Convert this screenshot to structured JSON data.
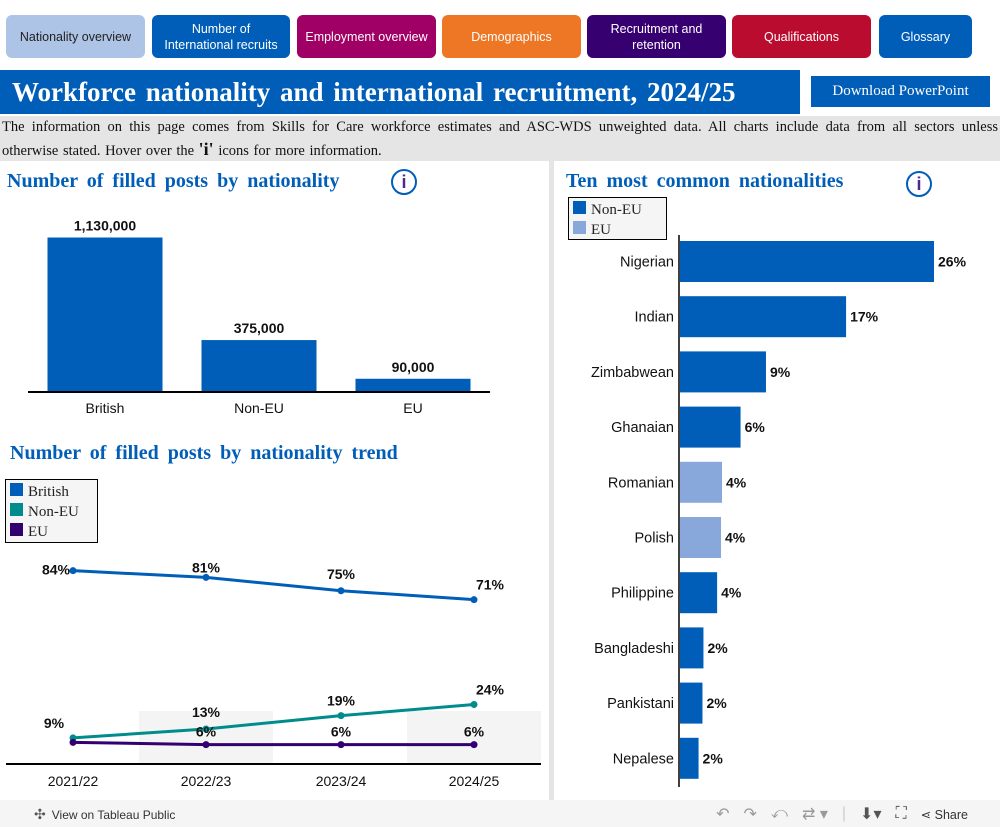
{
  "nav": {
    "tabs": [
      {
        "label": "Nationality overview",
        "color": "#AEC4E6",
        "text_color": "#222222"
      },
      {
        "label": "Number of\nInternational recruits",
        "color": "#005EB8",
        "text_color": "#FFFFFF"
      },
      {
        "label": "Employment overview",
        "color": "#A00065",
        "text_color": "#FFFFFF"
      },
      {
        "label": "Demographics",
        "color": "#ED7725",
        "text_color": "#FFFFFF"
      },
      {
        "label": "Recruitment and\nretention",
        "color": "#370071",
        "text_color": "#FFFFFF"
      },
      {
        "label": "Qualifications",
        "color": "#BA0C2F",
        "text_color": "#FFFFFF"
      },
      {
        "label": "Glossary",
        "color": "#005EB8",
        "text_color": "#FFFFFF"
      }
    ]
  },
  "header": {
    "title": "Workforce nationality and international recruitment, 2024/25",
    "download_label": "Download PowerPoint",
    "intro_part1": "The information on this page comes from Skills for Care workforce estimates and ASC-WDS unweighted data. All charts include data from all sectors unless otherwise stated. Hover over the ",
    "intro_icon": "'i'",
    "intro_part2": " icons for more information."
  },
  "icons": {
    "info": "i"
  },
  "colors": {
    "primary": "#005EB8",
    "non_eu": "#008C8C",
    "eu": "#330072",
    "eu_light": "#88A8DC",
    "band": "#F4F4F4"
  },
  "chart_data": [
    {
      "type": "bar",
      "title": "Number of filled posts by nationality",
      "categories": [
        "British",
        "Non-EU",
        "EU"
      ],
      "values": [
        1130000,
        375000,
        90000
      ],
      "labels": [
        "1,130,000",
        "375,000",
        "90,000"
      ],
      "xlabel": "",
      "ylabel": "",
      "ylim": [
        0,
        1200000
      ],
      "grid": false
    },
    {
      "type": "line",
      "title": "Number of filled posts by nationality trend",
      "x": [
        "2021/22",
        "2022/23",
        "2023/24",
        "2024/25"
      ],
      "series": [
        {
          "name": "British",
          "values": [
            84,
            81,
            75,
            71
          ],
          "labels": [
            "84%",
            "81%",
            "75%",
            "71%"
          ]
        },
        {
          "name": "Non-EU",
          "values": [
            9,
            13,
            19,
            24
          ],
          "labels": [
            "9%",
            "13%",
            "19%",
            "24%"
          ]
        },
        {
          "name": "EU",
          "values": [
            7,
            6,
            6,
            6
          ],
          "labels": [
            "",
            "6%",
            "6%",
            "6%"
          ]
        }
      ],
      "ylim": [
        0,
        100
      ],
      "legend": "top-left",
      "grid": false
    },
    {
      "type": "bar",
      "orientation": "horizontal",
      "title": "Ten most common nationalities",
      "categories": [
        "Nigerian",
        "Indian",
        "Zimbabwean",
        "Ghanaian",
        "Romanian",
        "Polish",
        "Philippine",
        "Bangladeshi",
        "Pankistani",
        "Nepalese"
      ],
      "values": [
        26,
        17,
        9,
        6,
        4,
        4,
        4,
        2,
        2,
        2
      ],
      "bar_values": [
        26,
        17,
        8.8,
        6.2,
        4.3,
        4.2,
        3.8,
        2.4,
        2.3,
        1.9
      ],
      "labels": [
        "26%",
        "17%",
        "9%",
        "6%",
        "4%",
        "4%",
        "4%",
        "2%",
        "2%",
        "2%"
      ],
      "groups": [
        "Non-EU",
        "Non-EU",
        "Non-EU",
        "Non-EU",
        "EU",
        "EU",
        "Non-EU",
        "Non-EU",
        "Non-EU",
        "Non-EU"
      ],
      "legend_entries": [
        "Non-EU",
        "EU"
      ],
      "legend": "top-left",
      "xlim": [
        0,
        30
      ]
    }
  ],
  "footer": {
    "tableau_label": "View on Tableau Public",
    "share_label": "Share"
  }
}
